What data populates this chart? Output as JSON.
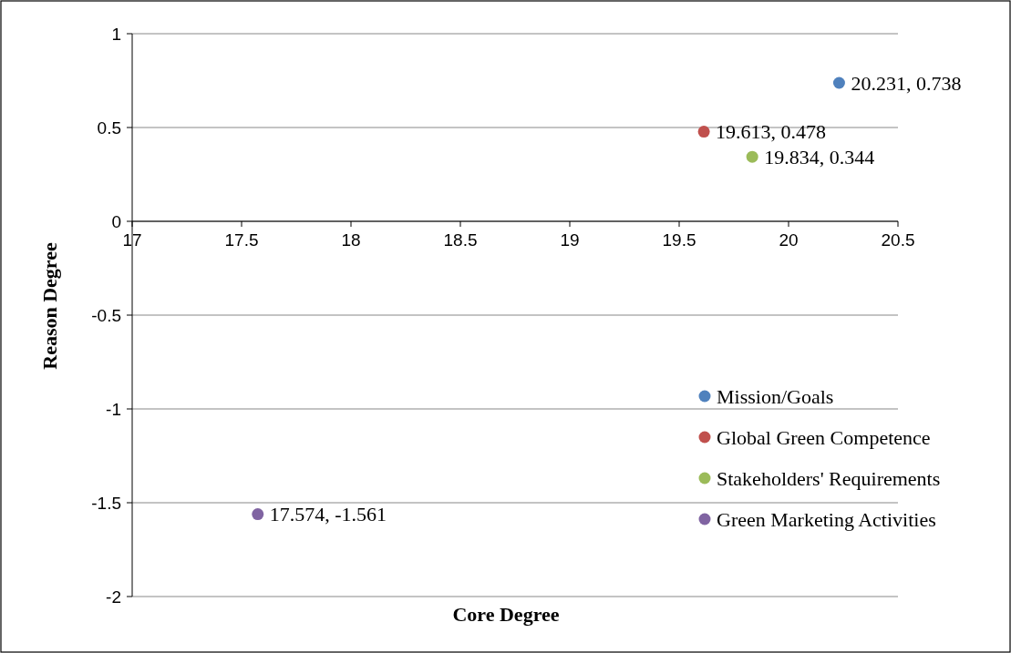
{
  "chart_data": {
    "type": "scatter",
    "xlabel": "Core Degree",
    "ylabel": "Reason Degree",
    "xlim": [
      17,
      20.5
    ],
    "xticks": [
      17,
      17.5,
      18,
      18.5,
      19,
      19.5,
      20,
      20.5
    ],
    "ylim": [
      -2,
      1
    ],
    "yticks": [
      -2,
      -1.5,
      -1,
      -0.5,
      0,
      0.5,
      1
    ],
    "grid": "y",
    "legend": "right",
    "marker": "circle",
    "series": [
      {
        "name": "Mission/Goals",
        "color": "#4f81bd",
        "x": [
          20.231
        ],
        "values": [
          0.738
        ],
        "value_labels": [
          "20.231, 0.738"
        ]
      },
      {
        "name": "Global Green Competence",
        "color": "#c0504d",
        "x": [
          19.613
        ],
        "values": [
          0.478
        ],
        "value_labels": [
          "19.613, 0.478"
        ]
      },
      {
        "name": "Stakeholders' Requirements",
        "color": "#9bbb59",
        "x": [
          19.834
        ],
        "values": [
          0.344
        ],
        "value_labels": [
          "19.834, 0.344"
        ]
      },
      {
        "name": "Green Marketing Activities",
        "color": "#8064a2",
        "x": [
          17.574
        ],
        "values": [
          -1.561
        ],
        "value_labels": [
          "17.574, -1.561"
        ]
      }
    ]
  }
}
